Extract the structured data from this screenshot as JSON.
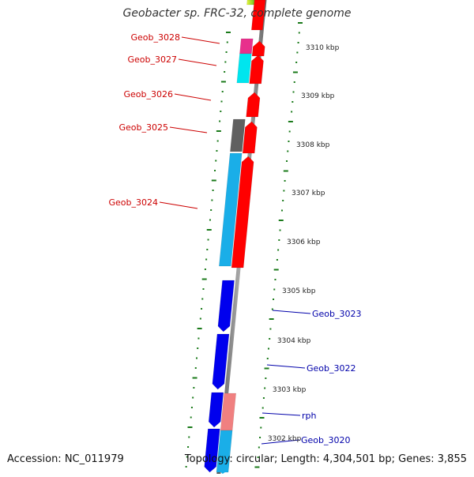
{
  "title": "Geobacter sp. FRC-32, complete genome",
  "footer": {
    "accession": "Accession: NC_011979",
    "topology": "Topology: circular; Length: 4,304,501 bp; Genes: 3,855"
  },
  "colors": {
    "backbone": "#8c8c8c",
    "ticks": "#1a7a1a",
    "label_red": "#cc0000",
    "label_blue": "#0000aa",
    "kbp_text": "#222222"
  },
  "kbp_ticks": [
    "3310 kbp",
    "3309 kbp",
    "3308 kbp",
    "3307 kbp",
    "3306 kbp",
    "3305 kbp",
    "3304 kbp",
    "3303 kbp",
    "3302 kbp"
  ],
  "genes": [
    {
      "name": "Geob_3028",
      "strand": "forward",
      "color": "#e8308c"
    },
    {
      "name": "Geob_3027",
      "strand": "forward",
      "color": "#00e5ee"
    },
    {
      "name": "Geob_3026",
      "strand": "forward",
      "color": "#ffffff"
    },
    {
      "name": "Geob_3025",
      "strand": "forward",
      "color": "#606060"
    },
    {
      "name": "Geob_3024",
      "strand": "forward",
      "color": "#1aaee8"
    },
    {
      "name": "Geob_3023",
      "strand": "reverse",
      "color": "#0000dd"
    },
    {
      "name": "Geob_3022",
      "strand": "reverse",
      "color": "#0000dd"
    },
    {
      "name": "rph",
      "strand": "reverse",
      "color": "#0000dd"
    },
    {
      "name": "Geob_3020",
      "strand": "reverse",
      "color": "#0000dd"
    }
  ]
}
